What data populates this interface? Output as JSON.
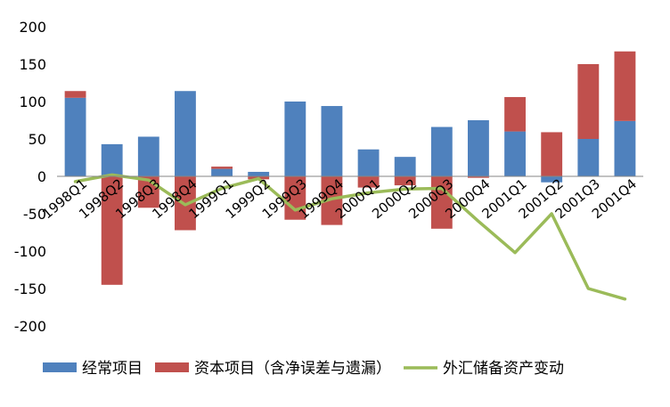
{
  "chart_data": {
    "type": "bar",
    "stacked": true,
    "categories": [
      "1998Q1",
      "1998Q2",
      "1998Q3",
      "1998Q4",
      "1999Q1",
      "1999Q2",
      "1999Q3",
      "1999Q4",
      "2000Q1",
      "2000Q2",
      "2000Q3",
      "2000Q4",
      "2001Q1",
      "2001Q2",
      "2001Q3",
      "2001Q4"
    ],
    "series": [
      {
        "name": "经常项目",
        "type": "bar",
        "color": "#4f81bd",
        "values": [
          105,
          43,
          53,
          114,
          10,
          6,
          100,
          94,
          36,
          26,
          66,
          75,
          60,
          -8,
          50,
          74
        ]
      },
      {
        "name": "资本项目（含净误差与遗漏）",
        "type": "bar",
        "color": "#c0504d",
        "values": [
          9,
          -145,
          -42,
          -72,
          3,
          -4,
          -58,
          -65,
          -15,
          -12,
          -70,
          -2,
          46,
          59,
          100,
          93
        ]
      },
      {
        "name": "外汇储备资产变动",
        "type": "line",
        "color": "#9bbb59",
        "values": [
          -7,
          2,
          -5,
          -38,
          -16,
          -3,
          -45,
          -30,
          -22,
          -17,
          -16,
          -60,
          -102,
          -50,
          -150,
          -164
        ]
      }
    ],
    "ylim": [
      -200,
      200
    ],
    "yticks": [
      200,
      150,
      100,
      50,
      0,
      -50,
      -100,
      -150,
      -200
    ],
    "title": "",
    "xlabel": "",
    "ylabel": "",
    "legend": "bottom",
    "grid": false
  }
}
